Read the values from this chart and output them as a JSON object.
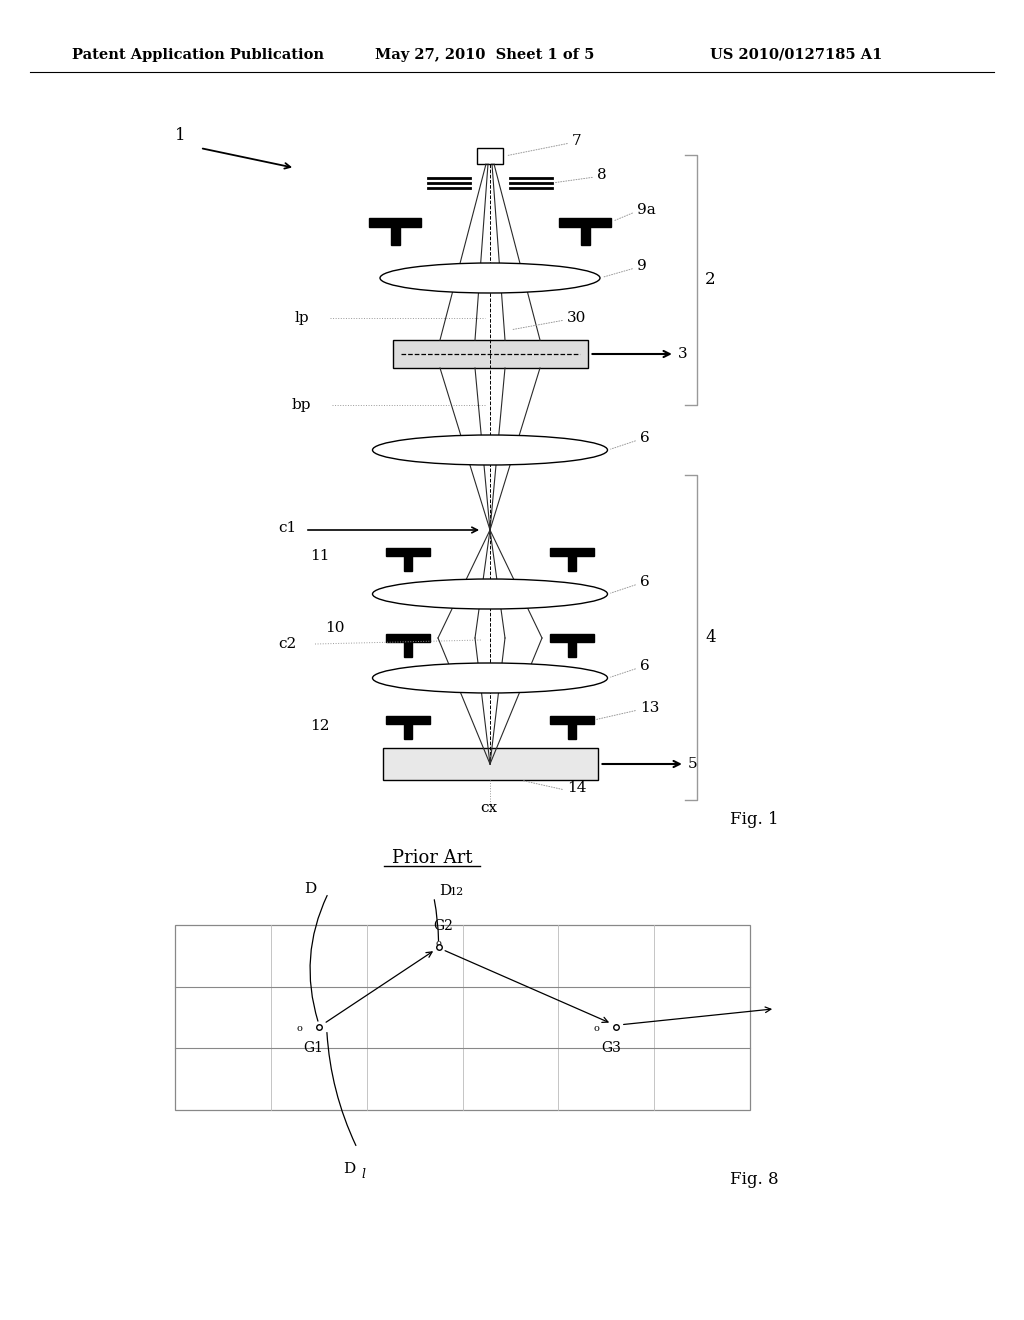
{
  "header_left": "Patent Application Publication",
  "header_mid": "May 27, 2010  Sheet 1 of 5",
  "header_right": "US 2010/0127185 A1",
  "fig1_label": "Fig. 1",
  "fig8_label": "Fig. 8",
  "prior_art_label": "Prior Art",
  "bg_color": "#ffffff",
  "line_color": "#000000",
  "light_line_color": "#999999"
}
